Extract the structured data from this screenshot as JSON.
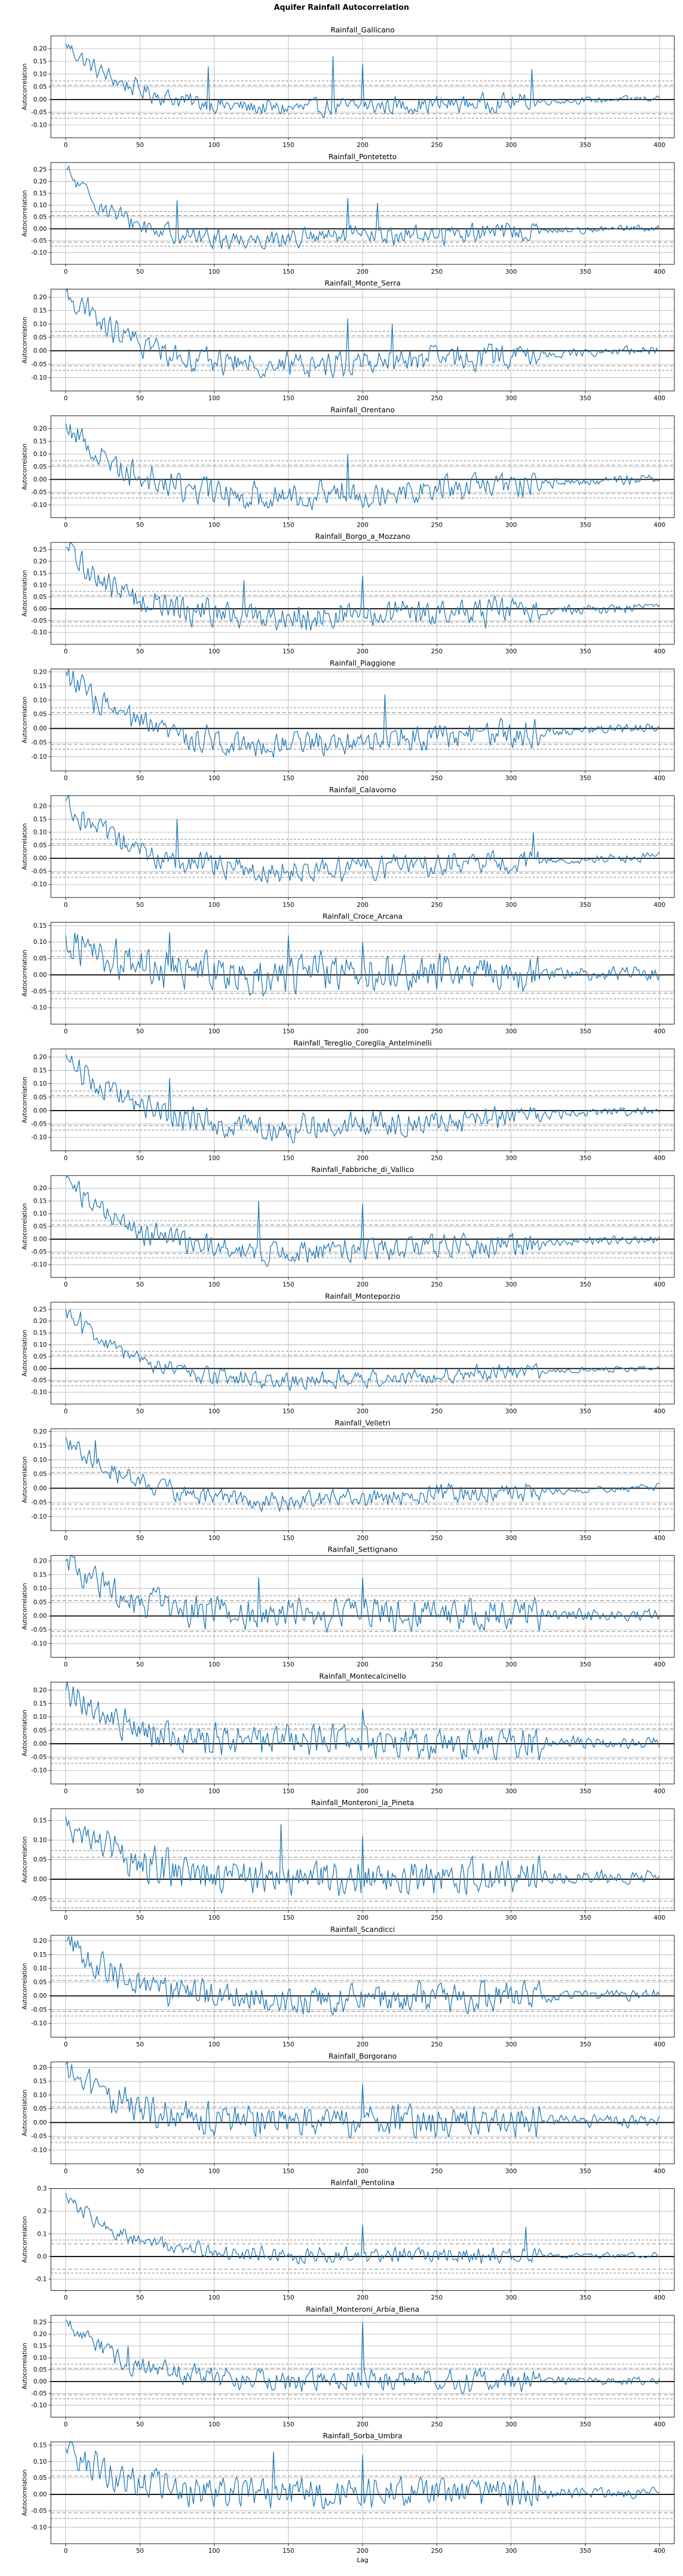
{
  "figure_title": "Aquifer Rainfall Autocorrelation",
  "chart_data": {
    "type": "line",
    "kind": "autocorrelation",
    "xlabel": "Lag",
    "ylabel": "Autocorrelation",
    "xlim": [
      -10,
      410
    ],
    "x_ticks": [
      0,
      50,
      100,
      150,
      200,
      250,
      300,
      350,
      400
    ],
    "grid": true,
    "line_color": "#1f77b4",
    "confidence_bands": {
      "inner": 0.056,
      "outer": 0.073
    },
    "subplots": [
      {
        "title": "Rainfall_Gallicano",
        "n_lags": 401,
        "ylim": [
          -0.15,
          0.25
        ],
        "y_ticks": [
          -0.1,
          -0.05,
          0.0,
          0.05,
          0.1,
          0.15,
          0.2
        ],
        "y_tick_labels": [
          "-0.10",
          "-0.05",
          "0.00",
          "0.05",
          "0.10",
          "0.15",
          "0.20"
        ],
        "acf_start": 0.22,
        "trend_min": -0.04,
        "trend_min_lag": 150,
        "noise": 0.03,
        "spikes": [
          [
            96,
            0.13
          ],
          [
            180,
            0.17
          ],
          [
            200,
            0.14
          ],
          [
            314,
            0.12
          ]
        ]
      },
      {
        "title": "Rainfall_Pontetetto",
        "n_lags": 401,
        "ylim": [
          -0.15,
          0.28
        ],
        "y_ticks": [
          -0.1,
          -0.05,
          0.0,
          0.05,
          0.1,
          0.15,
          0.2,
          0.25
        ],
        "y_tick_labels": [
          "-0.10",
          "-0.05",
          "0.00",
          "0.05",
          "0.10",
          "0.15",
          "0.20",
          "0.25"
        ],
        "acf_start": 0.25,
        "trend_min": -0.05,
        "trend_min_lag": 120,
        "noise": 0.035,
        "spikes": [
          [
            75,
            0.12
          ],
          [
            190,
            0.13
          ],
          [
            210,
            0.11
          ]
        ]
      },
      {
        "title": "Rainfall_Monte_Serra",
        "n_lags": 401,
        "ylim": [
          -0.15,
          0.23
        ],
        "y_ticks": [
          -0.1,
          -0.05,
          0.0,
          0.05,
          0.1,
          0.15,
          0.2
        ],
        "y_tick_labels": [
          "-0.10",
          "-0.05",
          "0.00",
          "0.05",
          "0.10",
          "0.15",
          "0.20"
        ],
        "acf_start": 0.22,
        "trend_min": -0.06,
        "trend_min_lag": 150,
        "noise": 0.04,
        "spikes": [
          [
            15,
            0.2
          ],
          [
            190,
            0.12
          ],
          [
            220,
            0.1
          ]
        ]
      },
      {
        "title": "Rainfall_Orentano",
        "n_lags": 401,
        "ylim": [
          -0.15,
          0.25
        ],
        "y_ticks": [
          -0.1,
          -0.05,
          0.0,
          0.05,
          0.1,
          0.15,
          0.2
        ],
        "y_tick_labels": [
          "-0.10",
          "-0.05",
          "0.00",
          "0.05",
          "0.10",
          "0.15",
          "0.20"
        ],
        "acf_start": 0.22,
        "trend_min": -0.07,
        "trend_min_lag": 140,
        "noise": 0.045,
        "spikes": [
          [
            8,
            0.2
          ],
          [
            190,
            0.1
          ]
        ]
      },
      {
        "title": "Rainfall_Borgo_a_Mozzano",
        "n_lags": 401,
        "ylim": [
          -0.15,
          0.28
        ],
        "y_ticks": [
          -0.1,
          -0.05,
          0.0,
          0.05,
          0.1,
          0.15,
          0.2,
          0.25
        ],
        "y_tick_labels": [
          "-0.10",
          "-0.05",
          "0.00",
          "0.05",
          "0.10",
          "0.15",
          "0.20",
          "0.25"
        ],
        "acf_start": 0.26,
        "trend_min": -0.04,
        "trend_min_lag": 140,
        "noise": 0.05,
        "spikes": [
          [
            120,
            0.12
          ],
          [
            200,
            0.14
          ]
        ]
      },
      {
        "title": "Rainfall_Piaggione",
        "n_lags": 401,
        "ylim": [
          -0.15,
          0.21
        ],
        "y_ticks": [
          -0.1,
          -0.05,
          0.0,
          0.05,
          0.1,
          0.15,
          0.2
        ],
        "y_tick_labels": [
          "-0.10",
          "-0.05",
          "0.00",
          "0.05",
          "0.10",
          "0.15",
          "0.20"
        ],
        "acf_start": 0.2,
        "trend_min": -0.06,
        "trend_min_lag": 140,
        "noise": 0.04,
        "spikes": [
          [
            215,
            0.12
          ]
        ]
      },
      {
        "title": "Rainfall_Calavorno",
        "n_lags": 401,
        "ylim": [
          -0.15,
          0.24
        ],
        "y_ticks": [
          -0.1,
          -0.05,
          0.0,
          0.05,
          0.1,
          0.15,
          0.2
        ],
        "y_tick_labels": [
          "-0.10",
          "-0.05",
          "0.00",
          "0.05",
          "0.10",
          "0.15",
          "0.20"
        ],
        "acf_start": 0.22,
        "trend_min": -0.05,
        "trend_min_lag": 140,
        "noise": 0.04,
        "spikes": [
          [
            75,
            0.15
          ],
          [
            315,
            0.1
          ]
        ]
      },
      {
        "title": "Rainfall_Croce_Arcana",
        "n_lags": 401,
        "ylim": [
          -0.15,
          0.16
        ],
        "y_ticks": [
          -0.1,
          -0.05,
          0.0,
          0.05,
          0.1,
          0.15
        ],
        "y_tick_labels": [
          "-0.10",
          "-0.05",
          "0.00",
          "0.05",
          "0.10",
          "0.15"
        ],
        "acf_start": 0.12,
        "trend_min": 0.0,
        "trend_min_lag": 150,
        "noise": 0.05,
        "spikes": [
          [
            70,
            0.13
          ],
          [
            150,
            0.12
          ],
          [
            200,
            0.1
          ]
        ]
      },
      {
        "title": "Rainfall_Tereglio_Coreglia_Antelminelli",
        "n_lags": 401,
        "ylim": [
          -0.15,
          0.23
        ],
        "y_ticks": [
          -0.1,
          -0.05,
          0.0,
          0.05,
          0.1,
          0.15,
          0.2
        ],
        "y_tick_labels": [
          "-0.10",
          "-0.05",
          "0.00",
          "0.05",
          "0.10",
          "0.15",
          "0.20"
        ],
        "acf_start": 0.21,
        "trend_min": -0.07,
        "trend_min_lag": 150,
        "noise": 0.04,
        "spikes": [
          [
            70,
            0.12
          ]
        ]
      },
      {
        "title": "Rainfall_Fabbriche_di_Vallico",
        "n_lags": 401,
        "ylim": [
          -0.15,
          0.25
        ],
        "y_ticks": [
          -0.1,
          -0.05,
          0.0,
          0.05,
          0.1,
          0.15,
          0.2
        ],
        "y_tick_labels": [
          "-0.10",
          "-0.05",
          "0.00",
          "0.05",
          "0.10",
          "0.15",
          "0.20"
        ],
        "acf_start": 0.24,
        "trend_min": -0.06,
        "trend_min_lag": 150,
        "noise": 0.04,
        "spikes": [
          [
            130,
            0.15
          ],
          [
            200,
            0.14
          ]
        ]
      },
      {
        "title": "Rainfall_Monteporzio",
        "n_lags": 401,
        "ylim": [
          -0.15,
          0.28
        ],
        "y_ticks": [
          -0.1,
          -0.05,
          0.0,
          0.05,
          0.1,
          0.15,
          0.2,
          0.25
        ],
        "y_tick_labels": [
          "-0.10",
          "-0.05",
          "0.00",
          "0.05",
          "0.10",
          "0.15",
          "0.20",
          "0.25"
        ],
        "acf_start": 0.25,
        "trend_min": -0.06,
        "trend_min_lag": 150,
        "noise": 0.03,
        "spikes": [
          [
            10,
            0.24
          ]
        ]
      },
      {
        "title": "Rainfall_Velletri",
        "n_lags": 401,
        "ylim": [
          -0.15,
          0.21
        ],
        "y_ticks": [
          -0.1,
          -0.05,
          0.0,
          0.05,
          0.1,
          0.15,
          0.2
        ],
        "y_tick_labels": [
          "-0.10",
          "-0.05",
          "0.00",
          "0.05",
          "0.10",
          "0.15",
          "0.20"
        ],
        "acf_start": 0.18,
        "trend_min": -0.05,
        "trend_min_lag": 150,
        "noise": 0.03,
        "spikes": [
          [
            20,
            0.17
          ]
        ]
      },
      {
        "title": "Rainfall_Settignano",
        "n_lags": 401,
        "ylim": [
          -0.15,
          0.22
        ],
        "y_ticks": [
          -0.1,
          -0.05,
          0.0,
          0.05,
          0.1,
          0.15,
          0.2
        ],
        "y_tick_labels": [
          "-0.10",
          "-0.05",
          "0.00",
          "0.05",
          "0.10",
          "0.15",
          "0.20"
        ],
        "acf_start": 0.2,
        "trend_min": 0.0,
        "trend_min_lag": 150,
        "noise": 0.05,
        "spikes": [
          [
            130,
            0.14
          ],
          [
            200,
            0.14
          ]
        ]
      },
      {
        "title": "Rainfall_Montecalcinello",
        "n_lags": 401,
        "ylim": [
          -0.15,
          0.23
        ],
        "y_ticks": [
          -0.1,
          -0.05,
          0.0,
          0.05,
          0.1,
          0.15,
          0.2
        ],
        "y_tick_labels": [
          "-0.10",
          "-0.05",
          "0.00",
          "0.05",
          "0.10",
          "0.15",
          "0.20"
        ],
        "acf_start": 0.2,
        "trend_min": 0.0,
        "trend_min_lag": 150,
        "noise": 0.05,
        "spikes": [
          [
            200,
            0.13
          ]
        ]
      },
      {
        "title": "Rainfall_Monteroni_la_Pineta",
        "n_lags": 401,
        "ylim": [
          -0.08,
          0.18
        ],
        "y_ticks": [
          -0.05,
          0.0,
          0.05,
          0.1,
          0.15
        ],
        "y_tick_labels": [
          "-0.05",
          "0.00",
          "0.05",
          "0.10",
          "0.15"
        ],
        "acf_start": 0.16,
        "trend_min": 0.0,
        "trend_min_lag": 150,
        "noise": 0.04,
        "spikes": [
          [
            145,
            0.14
          ],
          [
            200,
            0.11
          ]
        ]
      },
      {
        "title": "Rainfall_Scandicci",
        "n_lags": 401,
        "ylim": [
          -0.15,
          0.22
        ],
        "y_ticks": [
          -0.1,
          -0.05,
          0.0,
          0.05,
          0.1,
          0.15,
          0.2
        ],
        "y_tick_labels": [
          "-0.10",
          "-0.05",
          "0.00",
          "0.05",
          "0.10",
          "0.15",
          "0.20"
        ],
        "acf_start": 0.2,
        "trend_min": -0.02,
        "trend_min_lag": 150,
        "noise": 0.045,
        "spikes": [
          [
            10,
            0.18
          ]
        ]
      },
      {
        "title": "Rainfall_Borgorano",
        "n_lags": 401,
        "ylim": [
          -0.15,
          0.22
        ],
        "y_ticks": [
          -0.1,
          -0.05,
          0.0,
          0.05,
          0.1,
          0.15,
          0.2
        ],
        "y_tick_labels": [
          "-0.10",
          "-0.05",
          "0.00",
          "0.05",
          "0.10",
          "0.15",
          "0.20"
        ],
        "acf_start": 0.21,
        "trend_min": 0.0,
        "trend_min_lag": 150,
        "noise": 0.05,
        "spikes": [
          [
            200,
            0.14
          ]
        ]
      },
      {
        "title": "Rainfall_Pentolina",
        "n_lags": 401,
        "ylim": [
          -0.15,
          0.3
        ],
        "y_ticks": [
          -0.1,
          0.0,
          0.1,
          0.2,
          0.3
        ],
        "y_tick_labels": [
          "-0.1",
          "0.0",
          "0.1",
          "0.2",
          "0.3"
        ],
        "acf_start": 0.28,
        "trend_min": 0.0,
        "trend_min_lag": 150,
        "noise": 0.03,
        "spikes": [
          [
            200,
            0.14
          ],
          [
            310,
            0.13
          ]
        ]
      },
      {
        "title": "Rainfall_Monteroni_Arbia_Biena",
        "n_lags": 401,
        "ylim": [
          -0.15,
          0.28
        ],
        "y_ticks": [
          -0.1,
          -0.05,
          0.0,
          0.05,
          0.1,
          0.15,
          0.2,
          0.25
        ],
        "y_tick_labels": [
          "-0.10",
          "-0.05",
          "0.00",
          "0.05",
          "0.10",
          "0.15",
          "0.20",
          "0.25"
        ],
        "acf_start": 0.26,
        "trend_min": 0.0,
        "trend_min_lag": 150,
        "noise": 0.04,
        "spikes": [
          [
            200,
            0.25
          ],
          [
            42,
            0.15
          ]
        ]
      },
      {
        "title": "Rainfall_Sorba_Umbra",
        "n_lags": 401,
        "ylim": [
          -0.15,
          0.16
        ],
        "y_ticks": [
          -0.1,
          -0.05,
          0.0,
          0.05,
          0.1,
          0.15
        ],
        "y_tick_labels": [
          "-0.10",
          "-0.05",
          "0.00",
          "0.05",
          "0.10",
          "0.15"
        ],
        "acf_start": 0.14,
        "trend_min": 0.0,
        "trend_min_lag": 150,
        "noise": 0.04,
        "spikes": [
          [
            140,
            0.13
          ],
          [
            200,
            0.12
          ]
        ]
      }
    ]
  }
}
